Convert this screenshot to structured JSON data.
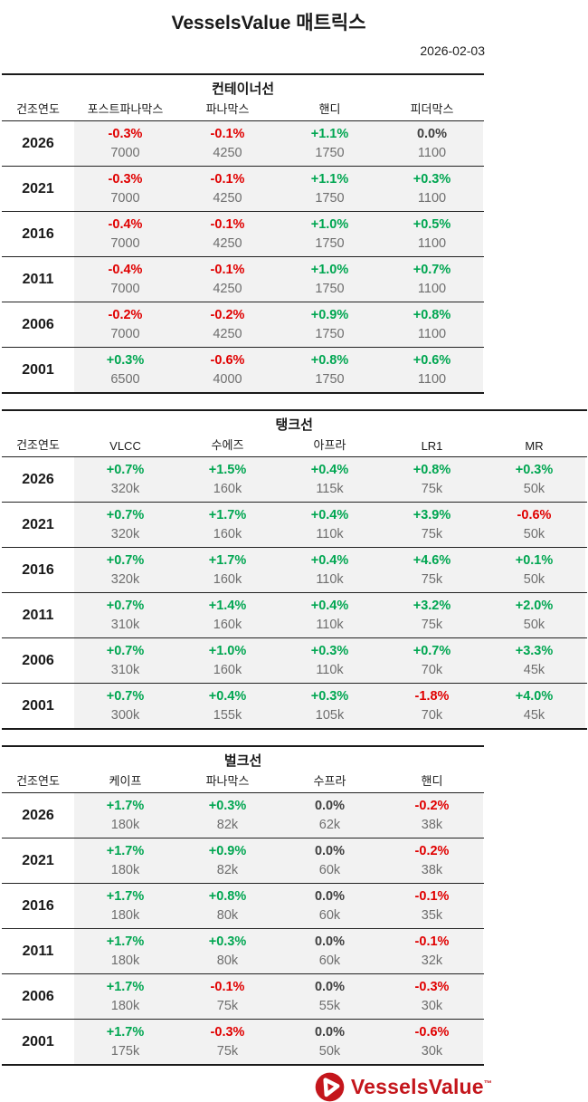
{
  "header": {
    "title": "VesselsValue 매트릭스",
    "date": "2026-02-03"
  },
  "table_common": {
    "year_col_header": "건조연도"
  },
  "sections": [
    {
      "title": "컨테이너선",
      "columns": [
        "포스트파나막스",
        "파나막스",
        "핸디",
        "피더막스"
      ],
      "rows": [
        {
          "year": "2026",
          "cells": [
            {
              "pct": "-0.3%",
              "value": "7000"
            },
            {
              "pct": "-0.1%",
              "value": "4250"
            },
            {
              "pct": "+1.1%",
              "value": "1750"
            },
            {
              "pct": "0.0%",
              "value": "1100"
            }
          ]
        },
        {
          "year": "2021",
          "cells": [
            {
              "pct": "-0.3%",
              "value": "7000"
            },
            {
              "pct": "-0.1%",
              "value": "4250"
            },
            {
              "pct": "+1.1%",
              "value": "1750"
            },
            {
              "pct": "+0.3%",
              "value": "1100"
            }
          ]
        },
        {
          "year": "2016",
          "cells": [
            {
              "pct": "-0.4%",
              "value": "7000"
            },
            {
              "pct": "-0.1%",
              "value": "4250"
            },
            {
              "pct": "+1.0%",
              "value": "1750"
            },
            {
              "pct": "+0.5%",
              "value": "1100"
            }
          ]
        },
        {
          "year": "2011",
          "cells": [
            {
              "pct": "-0.4%",
              "value": "7000"
            },
            {
              "pct": "-0.1%",
              "value": "4250"
            },
            {
              "pct": "+1.0%",
              "value": "1750"
            },
            {
              "pct": "+0.7%",
              "value": "1100"
            }
          ]
        },
        {
          "year": "2006",
          "cells": [
            {
              "pct": "-0.2%",
              "value": "7000"
            },
            {
              "pct": "-0.2%",
              "value": "4250"
            },
            {
              "pct": "+0.9%",
              "value": "1750"
            },
            {
              "pct": "+0.8%",
              "value": "1100"
            }
          ]
        },
        {
          "year": "2001",
          "cells": [
            {
              "pct": "+0.3%",
              "value": "6500"
            },
            {
              "pct": "-0.6%",
              "value": "4000"
            },
            {
              "pct": "+0.8%",
              "value": "1750"
            },
            {
              "pct": "+0.6%",
              "value": "1100"
            }
          ]
        }
      ]
    },
    {
      "title": "탱크선",
      "columns": [
        "VLCC",
        "수에즈",
        "아프라",
        "LR1",
        "MR"
      ],
      "rows": [
        {
          "year": "2026",
          "cells": [
            {
              "pct": "+0.7%",
              "value": "320k"
            },
            {
              "pct": "+1.5%",
              "value": "160k"
            },
            {
              "pct": "+0.4%",
              "value": "115k"
            },
            {
              "pct": "+0.8%",
              "value": "75k"
            },
            {
              "pct": "+0.3%",
              "value": "50k"
            }
          ]
        },
        {
          "year": "2021",
          "cells": [
            {
              "pct": "+0.7%",
              "value": "320k"
            },
            {
              "pct": "+1.7%",
              "value": "160k"
            },
            {
              "pct": "+0.4%",
              "value": "110k"
            },
            {
              "pct": "+3.9%",
              "value": "75k"
            },
            {
              "pct": "-0.6%",
              "value": "50k"
            }
          ]
        },
        {
          "year": "2016",
          "cells": [
            {
              "pct": "+0.7%",
              "value": "320k"
            },
            {
              "pct": "+1.7%",
              "value": "160k"
            },
            {
              "pct": "+0.4%",
              "value": "110k"
            },
            {
              "pct": "+4.6%",
              "value": "75k"
            },
            {
              "pct": "+0.1%",
              "value": "50k"
            }
          ]
        },
        {
          "year": "2011",
          "cells": [
            {
              "pct": "+0.7%",
              "value": "310k"
            },
            {
              "pct": "+1.4%",
              "value": "160k"
            },
            {
              "pct": "+0.4%",
              "value": "110k"
            },
            {
              "pct": "+3.2%",
              "value": "75k"
            },
            {
              "pct": "+2.0%",
              "value": "50k"
            }
          ]
        },
        {
          "year": "2006",
          "cells": [
            {
              "pct": "+0.7%",
              "value": "310k"
            },
            {
              "pct": "+1.0%",
              "value": "160k"
            },
            {
              "pct": "+0.3%",
              "value": "110k"
            },
            {
              "pct": "+0.7%",
              "value": "70k"
            },
            {
              "pct": "+3.3%",
              "value": "45k"
            }
          ]
        },
        {
          "year": "2001",
          "cells": [
            {
              "pct": "+0.7%",
              "value": "300k"
            },
            {
              "pct": "+0.4%",
              "value": "155k"
            },
            {
              "pct": "+0.3%",
              "value": "105k"
            },
            {
              "pct": "-1.8%",
              "value": "70k"
            },
            {
              "pct": "+4.0%",
              "value": "45k"
            }
          ]
        }
      ]
    },
    {
      "title": "벌크선",
      "columns": [
        "케이프",
        "파나막스",
        "수프라",
        "핸디"
      ],
      "rows": [
        {
          "year": "2026",
          "cells": [
            {
              "pct": "+1.7%",
              "value": "180k"
            },
            {
              "pct": "+0.3%",
              "value": "82k"
            },
            {
              "pct": "0.0%",
              "value": "62k"
            },
            {
              "pct": "-0.2%",
              "value": "38k"
            }
          ]
        },
        {
          "year": "2021",
          "cells": [
            {
              "pct": "+1.7%",
              "value": "180k"
            },
            {
              "pct": "+0.9%",
              "value": "82k"
            },
            {
              "pct": "0.0%",
              "value": "60k"
            },
            {
              "pct": "-0.2%",
              "value": "38k"
            }
          ]
        },
        {
          "year": "2016",
          "cells": [
            {
              "pct": "+1.7%",
              "value": "180k"
            },
            {
              "pct": "+0.8%",
              "value": "80k"
            },
            {
              "pct": "0.0%",
              "value": "60k"
            },
            {
              "pct": "-0.1%",
              "value": "35k"
            }
          ]
        },
        {
          "year": "2011",
          "cells": [
            {
              "pct": "+1.7%",
              "value": "180k"
            },
            {
              "pct": "+0.3%",
              "value": "80k"
            },
            {
              "pct": "0.0%",
              "value": "60k"
            },
            {
              "pct": "-0.1%",
              "value": "32k"
            }
          ]
        },
        {
          "year": "2006",
          "cells": [
            {
              "pct": "+1.7%",
              "value": "180k"
            },
            {
              "pct": "-0.1%",
              "value": "75k"
            },
            {
              "pct": "0.0%",
              "value": "55k"
            },
            {
              "pct": "-0.3%",
              "value": "30k"
            }
          ]
        },
        {
          "year": "2001",
          "cells": [
            {
              "pct": "+1.7%",
              "value": "175k"
            },
            {
              "pct": "-0.3%",
              "value": "75k"
            },
            {
              "pct": "0.0%",
              "value": "50k"
            },
            {
              "pct": "-0.6%",
              "value": "30k"
            }
          ]
        }
      ]
    }
  ],
  "footer": {
    "logo_text": "VesselsValue",
    "trademark": "™",
    "logo_icon": "play-triangle-in-circle-icon"
  },
  "colors": {
    "positive_green": "#00a651",
    "negative_red": "#e00000",
    "neutral_dark": "#3f3f3f",
    "value_gray": "#6e6e6e",
    "cell_background": "#f2f2f2",
    "brand_red": "#c4161c",
    "line_black": "#1a1a1a"
  }
}
